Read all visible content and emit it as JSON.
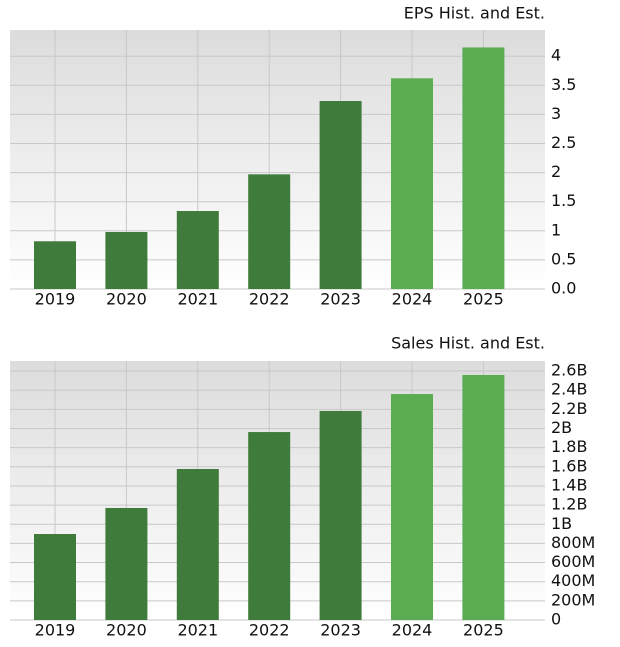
{
  "chart_data": [
    {
      "type": "bar",
      "title": "EPS Hist. and Est.",
      "categories": [
        "2019",
        "2020",
        "2021",
        "2022",
        "2023",
        "2024",
        "2025"
      ],
      "values": [
        0.82,
        0.98,
        1.34,
        1.97,
        3.23,
        3.62,
        4.15
      ],
      "colors": [
        "#3f7b3a",
        "#3f7b3a",
        "#3f7b3a",
        "#3f7b3a",
        "#3f7b3a",
        "#5bab53",
        "#5bab53"
      ],
      "ylim": [
        0,
        4.45
      ],
      "yticks": [
        {
          "value": 0,
          "label": "0.0"
        },
        0.5,
        1,
        1.5,
        2,
        2.5,
        3,
        3.5,
        4
      ],
      "grid": true
    },
    {
      "type": "bar",
      "title": "Sales Hist. and Est.",
      "categories": [
        "2019",
        "2020",
        "2021",
        "2022",
        "2023",
        "2024",
        "2025"
      ],
      "values": [
        898000000,
        1170000000,
        1577000000,
        1963000000,
        2183000000,
        2360000000,
        2559000000
      ],
      "colors": [
        "#3f7b3a",
        "#3f7b3a",
        "#3f7b3a",
        "#3f7b3a",
        "#3f7b3a",
        "#5bab53",
        "#5bab53"
      ],
      "ylim": [
        0,
        2705000000
      ],
      "yticks": [
        0,
        {
          "value": 200000000,
          "label": "200M"
        },
        {
          "value": 400000000,
          "label": "400M"
        },
        {
          "value": 600000000,
          "label": "600M"
        },
        {
          "value": 800000000,
          "label": "800M"
        },
        {
          "value": 1000000000,
          "label": "1B"
        },
        {
          "value": 1200000000,
          "label": "1.2B"
        },
        {
          "value": 1400000000,
          "label": "1.4B"
        },
        {
          "value": 1600000000,
          "label": "1.6B"
        },
        {
          "value": 1800000000,
          "label": "1.8B"
        },
        {
          "value": 2000000000,
          "label": "2B"
        },
        {
          "value": 2200000000,
          "label": "2.2B"
        },
        {
          "value": 2400000000,
          "label": "2.4B"
        },
        {
          "value": 2600000000,
          "label": "2.6B"
        }
      ],
      "grid": true
    }
  ]
}
